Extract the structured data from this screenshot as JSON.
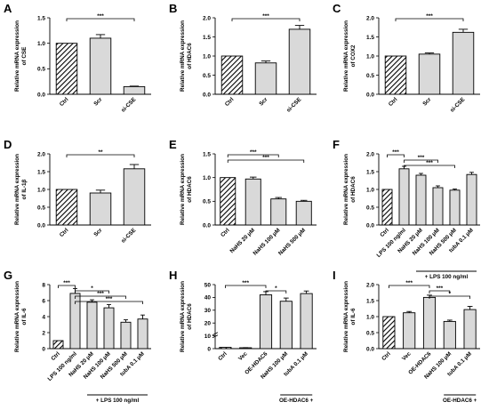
{
  "chart_data": [
    {
      "panel": "A",
      "type": "bar",
      "ylabel": "Relative mRNA expression of CSE",
      "ylim": [
        0,
        1.5
      ],
      "yticks": [
        "0.0",
        "0.5",
        "1.0",
        "1.5"
      ],
      "categories": [
        "Ctrl",
        "Scr",
        "si-CSE"
      ],
      "values": [
        1.0,
        1.1,
        0.15
      ],
      "errors": [
        0,
        0.07,
        0.01
      ],
      "hatched": [
        true,
        false,
        false
      ],
      "significance": [
        {
          "from": 0,
          "to": 2,
          "label": "***"
        }
      ]
    },
    {
      "panel": "B",
      "type": "bar",
      "ylabel": "Relative mRNA expression of HDAC6",
      "ylim": [
        0,
        2.0
      ],
      "yticks": [
        "0.0",
        "0.5",
        "1.0",
        "1.5",
        "2.0"
      ],
      "categories": [
        "Ctrl",
        "Scr",
        "si-CSE"
      ],
      "values": [
        1.0,
        0.82,
        1.7
      ],
      "errors": [
        0,
        0.05,
        0.1
      ],
      "hatched": [
        true,
        false,
        false
      ],
      "significance": [
        {
          "from": 0,
          "to": 2,
          "label": "***"
        }
      ]
    },
    {
      "panel": "C",
      "type": "bar",
      "ylabel": "Relative mRNA expression of COX2",
      "ylim": [
        0,
        2.0
      ],
      "yticks": [
        "0.0",
        "0.5",
        "1.0",
        "1.5",
        "2.0"
      ],
      "categories": [
        "Ctrl",
        "Scr",
        "si-CSE"
      ],
      "values": [
        1.0,
        1.05,
        1.62
      ],
      "errors": [
        0,
        0.03,
        0.08
      ],
      "hatched": [
        true,
        false,
        false
      ],
      "significance": [
        {
          "from": 0,
          "to": 2,
          "label": "***"
        }
      ]
    },
    {
      "panel": "D",
      "type": "bar",
      "ylabel": "Relative mRNA expression of IL-1β",
      "ylim": [
        0,
        2.0
      ],
      "yticks": [
        "0.0",
        "0.5",
        "1.0",
        "1.5",
        "2.0"
      ],
      "categories": [
        "Ctrl",
        "Scr",
        "si-CSE"
      ],
      "values": [
        1.0,
        0.9,
        1.58
      ],
      "errors": [
        0,
        0.08,
        0.12
      ],
      "hatched": [
        true,
        false,
        false
      ],
      "significance": [
        {
          "from": 0,
          "to": 2,
          "label": "**"
        }
      ]
    },
    {
      "panel": "E",
      "type": "bar",
      "ylabel": "Relative mRNA expression of HDAC6",
      "ylim": [
        0,
        1.5
      ],
      "yticks": [
        "0.0",
        "0.5",
        "1.0",
        "1.5"
      ],
      "categories": [
        "Ctrl",
        "NaHS 20 μM",
        "NaHS 100 μM",
        "NaHS 500 μM"
      ],
      "values": [
        1.0,
        0.97,
        0.55,
        0.5
      ],
      "errors": [
        0,
        0.04,
        0.03,
        0.02
      ],
      "hatched": [
        true,
        false,
        false,
        false
      ],
      "significance": [
        {
          "from": 0,
          "to": 2,
          "label": "***"
        },
        {
          "from": 0,
          "to": 3,
          "label": "***"
        }
      ]
    },
    {
      "panel": "F",
      "type": "bar",
      "ylabel": "Relative mRNA expression of HDAC6",
      "ylim": [
        0,
        2.0
      ],
      "yticks": [
        "0.0",
        "0.5",
        "1.0",
        "1.5",
        "2.0"
      ],
      "categories": [
        "Ctrl",
        "LPS 100 ng/ml",
        "NaHS 20 μM",
        "NaHS 100 μM",
        "NaHS 500 μM",
        "tubA 0.1 μM"
      ],
      "values": [
        1.0,
        1.58,
        1.4,
        1.05,
        0.98,
        1.42
      ],
      "errors": [
        0,
        0.07,
        0.05,
        0.05,
        0.03,
        0.06
      ],
      "hatched": [
        true,
        false,
        false,
        false,
        false,
        false
      ],
      "significance": [
        {
          "from": 0,
          "to": 1,
          "label": "***"
        },
        {
          "from": 1,
          "to": 3,
          "label": "***"
        },
        {
          "from": 1,
          "to": 4,
          "label": "***"
        }
      ],
      "group_bracket": {
        "from": 2,
        "to": 5,
        "label": "+ LPS 100 ng/ml"
      }
    },
    {
      "panel": "G",
      "type": "bar",
      "ylabel": "Relative mRNA expression of IL-6",
      "ylim": [
        0,
        8
      ],
      "yticks": [
        "0",
        "2",
        "4",
        "6",
        "8"
      ],
      "categories": [
        "Ctrl",
        "LPS 100 ng/ml",
        "NaHS 20 μM",
        "NaHS 100 μM",
        "NaHS 500 μM",
        "tubA 0.1 μM"
      ],
      "values": [
        1.0,
        6.9,
        5.8,
        5.1,
        3.3,
        3.7
      ],
      "errors": [
        0,
        0.6,
        0.3,
        0.4,
        0.3,
        0.5
      ],
      "hatched": [
        true,
        false,
        false,
        false,
        false,
        false
      ],
      "significance": [
        {
          "from": 0,
          "to": 1,
          "label": "***"
        },
        {
          "from": 1,
          "to": 3,
          "label": "*"
        },
        {
          "from": 1,
          "to": 4,
          "label": "***"
        },
        {
          "from": 1,
          "to": 5,
          "label": "***"
        }
      ],
      "group_bracket": {
        "from": 2,
        "to": 5,
        "label": "+ LPS 100 ng/ml"
      }
    },
    {
      "panel": "H",
      "type": "bar",
      "ylabel": "Relative mRNA expression of HDAC6",
      "ylim": [
        0,
        50
      ],
      "yticks": [
        "0",
        "10",
        "20",
        "30",
        "40",
        "50"
      ],
      "y_broken": true,
      "categories": [
        "Ctrl",
        "Vec",
        "OE-HDAC6",
        "NaHS 100 μM",
        "tubA 0.1 μM"
      ],
      "values": [
        1.0,
        0.7,
        42,
        37,
        43
      ],
      "errors": [
        0,
        0.1,
        2.5,
        2.5,
        2.0
      ],
      "hatched": [
        true,
        false,
        false,
        false,
        false
      ],
      "significance": [
        {
          "from": 0,
          "to": 2,
          "label": "***"
        },
        {
          "from": 2,
          "to": 3,
          "label": "*"
        }
      ],
      "group_bracket": {
        "from": 3,
        "to": 4,
        "label": "OE-HDAC6 +"
      }
    },
    {
      "panel": "I",
      "type": "bar",
      "ylabel": "Relative mRNA expression of IL-6",
      "ylim": [
        0,
        2.0
      ],
      "yticks": [
        "0.0",
        "0.5",
        "1.0",
        "1.5",
        "2.0"
      ],
      "categories": [
        "Ctrl",
        "Vec",
        "OE-HDAC6",
        "NaHS 100 μM",
        "tubA 0.1 μM"
      ],
      "values": [
        1.0,
        1.12,
        1.6,
        0.85,
        1.22
      ],
      "errors": [
        0,
        0.04,
        0.07,
        0.04,
        0.1
      ],
      "hatched": [
        true,
        false,
        false,
        false,
        false
      ],
      "significance": [
        {
          "from": 0,
          "to": 2,
          "label": "***"
        },
        {
          "from": 2,
          "to": 3,
          "label": "***"
        },
        {
          "from": 2,
          "to": 4,
          "label": "*"
        }
      ],
      "group_bracket": {
        "from": 3,
        "to": 4,
        "label": "OE-HDAC6 +"
      }
    }
  ],
  "colors": {
    "bar_fill": "#d9d9d9",
    "stroke": "#000000",
    "text": "#000000"
  }
}
